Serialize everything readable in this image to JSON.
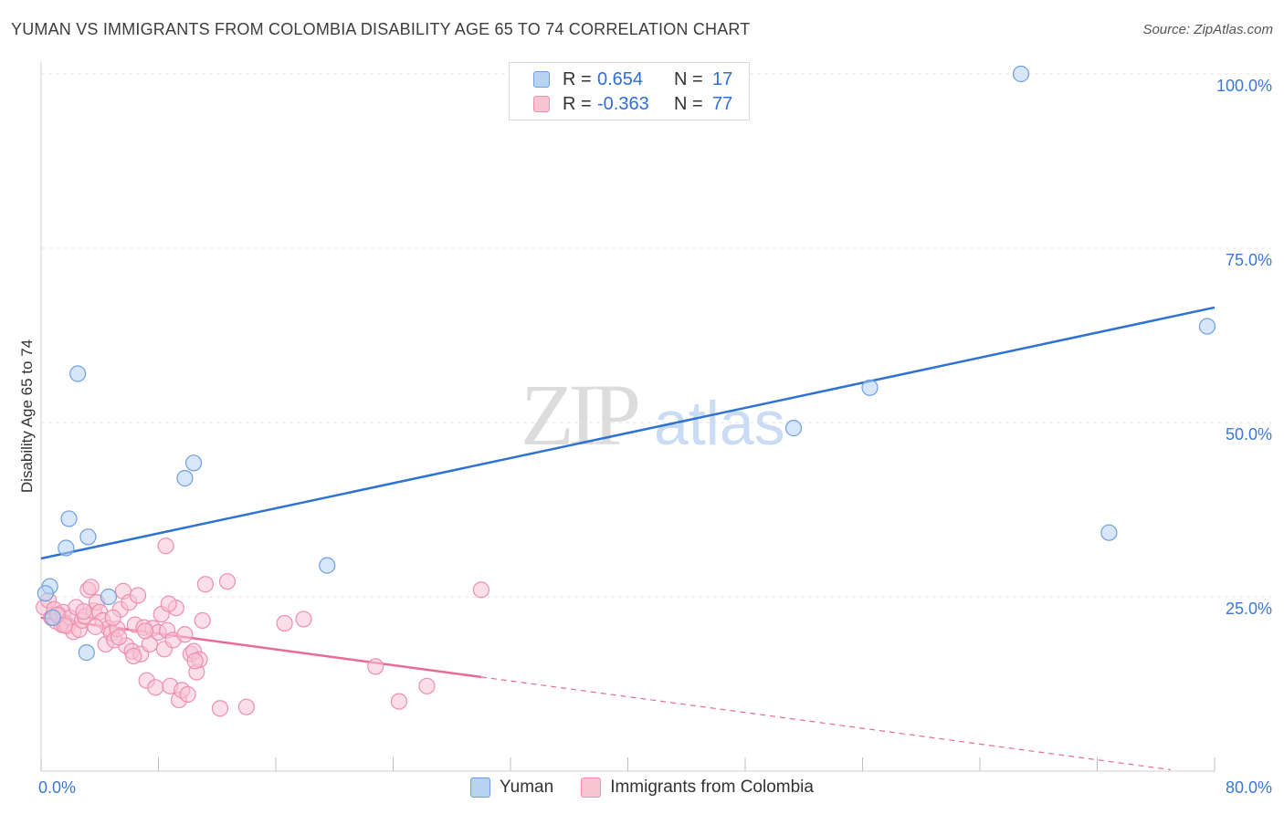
{
  "title": "YUMAN VS IMMIGRANTS FROM COLOMBIA DISABILITY AGE 65 TO 74 CORRELATION CHART",
  "source": "Source: ZipAtlas.com",
  "watermark": {
    "zip": "ZIP",
    "atlas": "atlas"
  },
  "legend": {
    "rows": [
      {
        "r_label": "R =",
        "r_value": "0.654",
        "n_label": "N =",
        "n_value": "17"
      },
      {
        "r_label": "R =",
        "r_value": "-0.363",
        "n_label": "N =",
        "n_value": "77"
      }
    ]
  },
  "colors": {
    "yuman_fill": "#b8d2f4",
    "yuman_stroke": "#6d9fe0",
    "yuman_line": "#2e72d2",
    "colombia_fill": "#f8c3d3",
    "colombia_stroke": "#ec8fad",
    "colombia_line": "#e86a96",
    "grid": "#e3e3e3",
    "axis_tick_text": "#3a78d6"
  },
  "chart_data": {
    "type": "scatter",
    "title": "YUMAN VS IMMIGRANTS FROM COLOMBIA DISABILITY AGE 65 TO 74 CORRELATION CHART",
    "xlabel": "",
    "ylabel": "Disability Age 65 to 74",
    "xlim": [
      0,
      80
    ],
    "ylim": [
      0,
      102
    ],
    "x_tick_labels": [
      "0.0%",
      "80.0%"
    ],
    "y_ticks": [
      25,
      50,
      75,
      100
    ],
    "y_tick_labels": [
      "25.0%",
      "50.0%",
      "75.0%",
      "100.0%"
    ],
    "legend": [
      "Yuman",
      "Immigrants from Colombia"
    ],
    "series": [
      {
        "name": "Yuman",
        "points": [
          [
            0.6,
            26.5
          ],
          [
            0.3,
            25.5
          ],
          [
            2.5,
            57.0
          ],
          [
            1.9,
            36.2
          ],
          [
            1.7,
            32.0
          ],
          [
            3.2,
            33.6
          ],
          [
            3.1,
            17.0
          ],
          [
            4.6,
            25.0
          ],
          [
            9.8,
            42.0
          ],
          [
            10.4,
            44.2
          ],
          [
            19.5,
            29.5
          ],
          [
            51.3,
            49.2
          ],
          [
            56.5,
            55.0
          ],
          [
            66.8,
            100.0
          ],
          [
            72.8,
            34.2
          ],
          [
            79.5,
            63.8
          ],
          [
            0.8,
            22.0
          ]
        ],
        "trend": {
          "x": [
            0,
            80
          ],
          "y": [
            30.5,
            66.5
          ]
        }
      },
      {
        "name": "Immigrants from Colombia",
        "points": [
          [
            0.2,
            23.5
          ],
          [
            0.5,
            24.5
          ],
          [
            0.7,
            22.0
          ],
          [
            0.9,
            23.2
          ],
          [
            1.0,
            21.5
          ],
          [
            1.2,
            22.5
          ],
          [
            1.4,
            21.0
          ],
          [
            1.5,
            22.8
          ],
          [
            1.7,
            21.2
          ],
          [
            1.8,
            20.8
          ],
          [
            2.0,
            22.0
          ],
          [
            2.2,
            20.0
          ],
          [
            2.4,
            23.5
          ],
          [
            2.6,
            20.3
          ],
          [
            2.8,
            21.6
          ],
          [
            3.0,
            22.2
          ],
          [
            3.2,
            26.0
          ],
          [
            3.4,
            26.4
          ],
          [
            3.6,
            23.0
          ],
          [
            3.8,
            24.2
          ],
          [
            4.0,
            22.8
          ],
          [
            4.2,
            21.6
          ],
          [
            4.4,
            18.2
          ],
          [
            4.6,
            20.5
          ],
          [
            4.8,
            19.8
          ],
          [
            5.0,
            18.8
          ],
          [
            5.2,
            20.4
          ],
          [
            5.4,
            23.2
          ],
          [
            5.6,
            25.8
          ],
          [
            5.8,
            18.0
          ],
          [
            6.0,
            24.2
          ],
          [
            6.2,
            17.2
          ],
          [
            6.4,
            21.0
          ],
          [
            6.6,
            25.2
          ],
          [
            6.8,
            16.8
          ],
          [
            7.0,
            20.6
          ],
          [
            7.2,
            13.0
          ],
          [
            7.4,
            18.2
          ],
          [
            7.6,
            20.5
          ],
          [
            7.8,
            12.0
          ],
          [
            8.0,
            19.9
          ],
          [
            8.2,
            22.5
          ],
          [
            8.4,
            17.5
          ],
          [
            8.6,
            20.2
          ],
          [
            8.8,
            12.2
          ],
          [
            9.0,
            18.8
          ],
          [
            9.2,
            23.4
          ],
          [
            9.4,
            10.2
          ],
          [
            9.6,
            11.6
          ],
          [
            9.8,
            19.6
          ],
          [
            10.0,
            11.0
          ],
          [
            10.2,
            16.8
          ],
          [
            10.4,
            17.2
          ],
          [
            10.6,
            14.2
          ],
          [
            10.8,
            16.0
          ],
          [
            11.0,
            21.6
          ],
          [
            11.2,
            26.8
          ],
          [
            12.2,
            9.0
          ],
          [
            12.7,
            27.2
          ],
          [
            14.0,
            9.2
          ],
          [
            16.6,
            21.2
          ],
          [
            17.9,
            21.8
          ],
          [
            22.8,
            15.0
          ],
          [
            24.4,
            10.0
          ],
          [
            26.3,
            12.2
          ],
          [
            30.0,
            26.0
          ],
          [
            8.5,
            32.3
          ],
          [
            1.1,
            22.4
          ],
          [
            1.6,
            20.9
          ],
          [
            2.9,
            22.9
          ],
          [
            3.7,
            20.7
          ],
          [
            4.9,
            22.0
          ],
          [
            6.3,
            16.5
          ],
          [
            7.1,
            20.1
          ],
          [
            8.7,
            24.0
          ],
          [
            10.5,
            15.8
          ],
          [
            5.3,
            19.2
          ]
        ],
        "trend": {
          "x": [
            0,
            30
          ],
          "y": [
            22.0,
            13.5
          ]
        },
        "trend_dashed": {
          "x": [
            30,
            77
          ],
          "y": [
            13.5,
            0.2
          ]
        }
      }
    ]
  }
}
